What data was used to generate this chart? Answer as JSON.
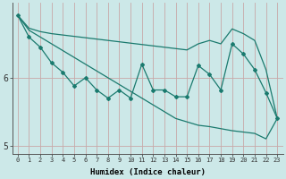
{
  "xlabel": "Humidex (Indice chaleur)",
  "bg_color": "#cce8e8",
  "grid_color_v": "#c8a8a8",
  "grid_color_h": "#c8a8a8",
  "line_color": "#1a7a6e",
  "x": [
    0,
    1,
    2,
    3,
    4,
    5,
    6,
    7,
    8,
    9,
    10,
    11,
    12,
    13,
    14,
    15,
    16,
    17,
    18,
    19,
    20,
    21,
    22,
    23
  ],
  "y_upper": [
    6.92,
    6.73,
    6.68,
    6.65,
    6.63,
    6.61,
    6.59,
    6.57,
    6.55,
    6.53,
    6.51,
    6.49,
    6.47,
    6.45,
    6.43,
    6.41,
    6.5,
    6.55,
    6.5,
    6.72,
    6.65,
    6.55,
    6.12,
    5.4
  ],
  "y_lower": [
    6.92,
    6.7,
    6.6,
    6.5,
    6.4,
    6.3,
    6.2,
    6.1,
    6.0,
    5.9,
    5.8,
    5.7,
    5.6,
    5.5,
    5.4,
    5.35,
    5.3,
    5.28,
    5.25,
    5.22,
    5.2,
    5.18,
    5.1,
    5.4
  ],
  "y_mid": [
    6.92,
    6.6,
    6.45,
    6.22,
    6.08,
    5.88,
    6.0,
    5.82,
    5.7,
    5.82,
    5.7,
    6.2,
    5.82,
    5.82,
    5.72,
    5.72,
    6.18,
    6.05,
    5.82,
    6.5,
    6.35,
    6.12,
    5.78,
    5.4
  ],
  "ylim": [
    4.88,
    7.1
  ],
  "xlim": [
    -0.5,
    23.5
  ],
  "yticks": [
    5,
    6
  ],
  "xticks": [
    0,
    1,
    2,
    3,
    4,
    5,
    6,
    7,
    8,
    9,
    10,
    11,
    12,
    13,
    14,
    15,
    16,
    17,
    18,
    19,
    20,
    21,
    22,
    23
  ],
  "figsize": [
    3.2,
    2.0
  ],
  "dpi": 100
}
